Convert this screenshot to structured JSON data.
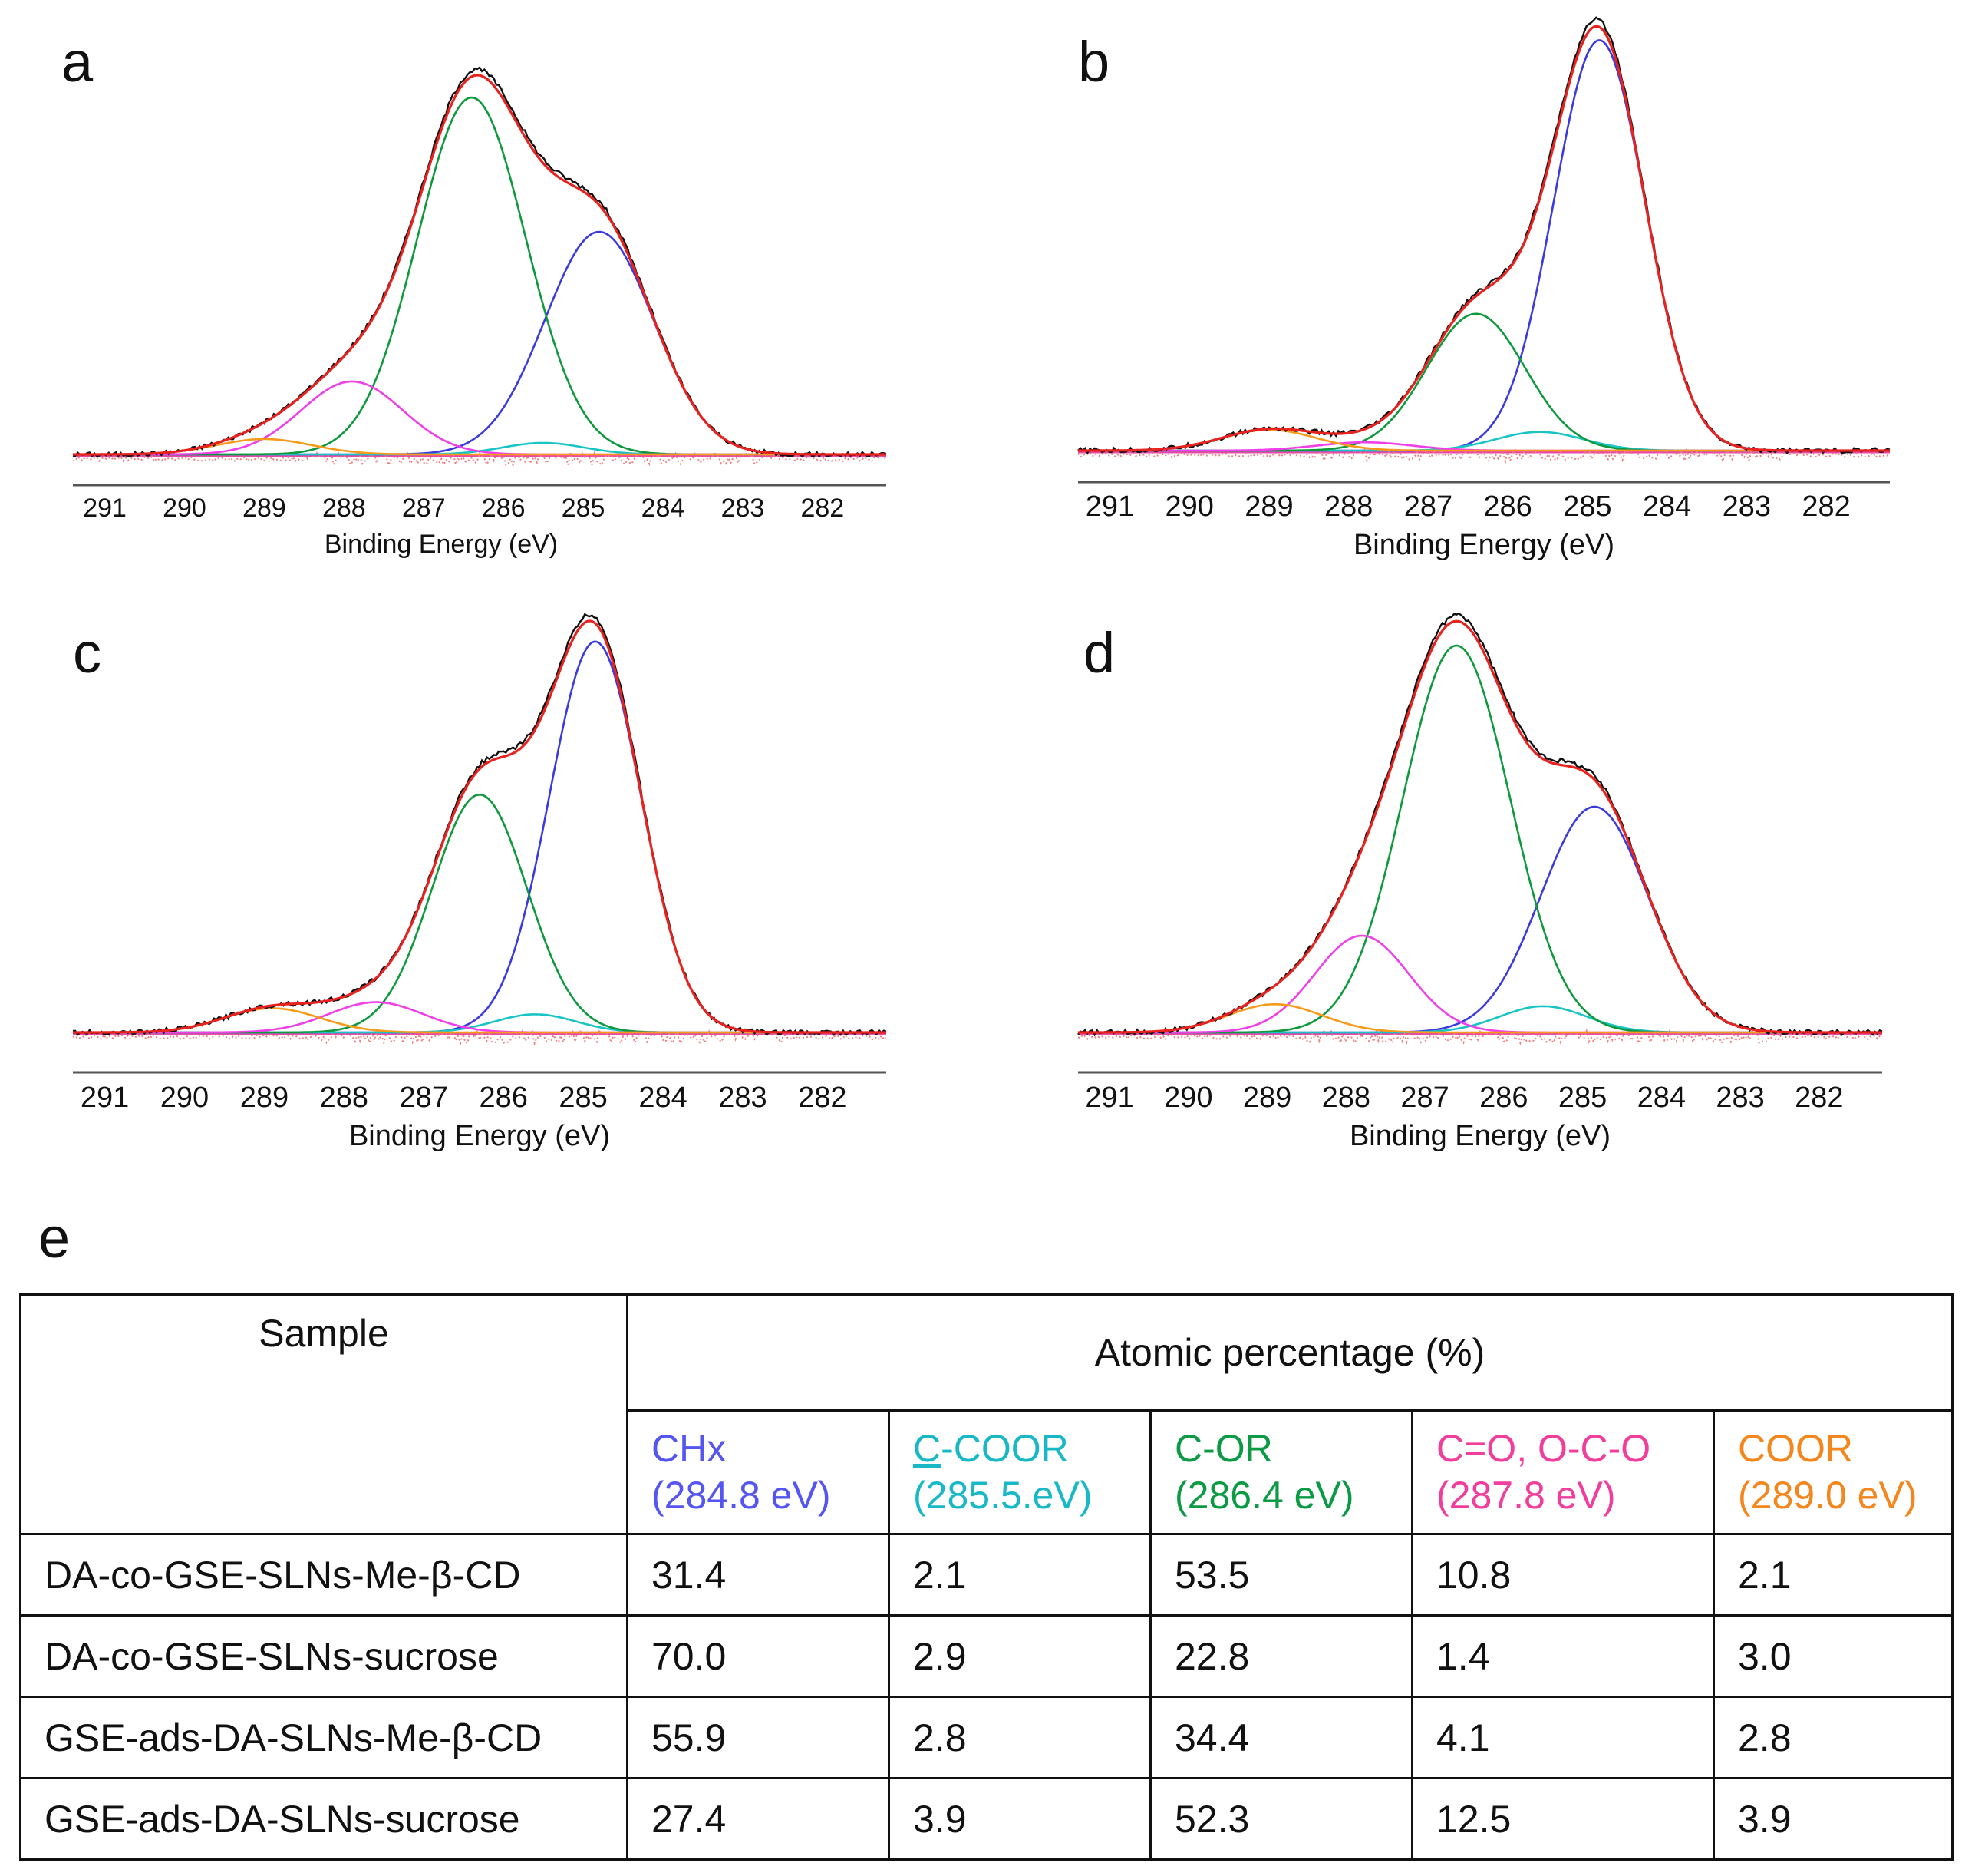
{
  "chart_data": [
    {
      "type": "line",
      "panel": "a",
      "xlabel": "Binding Energy (eV)",
      "ylabel": "",
      "xlim": [
        291.4,
        281.2
      ],
      "ylim": [
        0,
        1.0
      ],
      "xticks": [
        291,
        290,
        289,
        288,
        287,
        286,
        285,
        284,
        283,
        282
      ],
      "components": [
        {
          "name": "CHx",
          "color": "#3a3ae0",
          "center": 284.8,
          "height": 0.58,
          "fwhm": 1.6
        },
        {
          "name": "C-COOR",
          "color": "#19c4c4",
          "center": 285.5,
          "height": 0.03,
          "fwhm": 1.2
        },
        {
          "name": "C-OR",
          "color": "#0e9a3c",
          "center": 286.4,
          "height": 0.93,
          "fwhm": 1.6
        },
        {
          "name": "C=O, O-C-O",
          "color": "#f03ee8",
          "center": 287.9,
          "height": 0.19,
          "fwhm": 1.5
        },
        {
          "name": "COOR",
          "color": "#f79a1a",
          "center": 289.0,
          "height": 0.04,
          "fwhm": 1.4
        }
      ]
    },
    {
      "type": "line",
      "panel": "b",
      "xlabel": "Binding Energy (eV)",
      "ylabel": "",
      "xlim": [
        291.4,
        281.2
      ],
      "ylim": [
        0,
        1.0
      ],
      "xticks": [
        291,
        290,
        289,
        288,
        287,
        286,
        285,
        284,
        283,
        282
      ],
      "components": [
        {
          "name": "CHx",
          "color": "#3a3ae0",
          "center": 284.85,
          "height": 0.99,
          "fwhm": 1.35
        },
        {
          "name": "C-COOR",
          "color": "#19c4c4",
          "center": 285.6,
          "height": 0.045,
          "fwhm": 1.3
        },
        {
          "name": "C-OR",
          "color": "#0e9a3c",
          "center": 286.4,
          "height": 0.33,
          "fwhm": 1.45
        },
        {
          "name": "C=O, O-C-O",
          "color": "#f03ee8",
          "center": 287.8,
          "height": 0.02,
          "fwhm": 1.4
        },
        {
          "name": "COOR",
          "color": "#f79a1a",
          "center": 289.0,
          "height": 0.05,
          "fwhm": 1.4
        }
      ]
    },
    {
      "type": "line",
      "panel": "c",
      "xlabel": "Binding Energy (eV)",
      "ylabel": "",
      "xlim": [
        291.4,
        281.2
      ],
      "ylim": [
        0,
        1.0
      ],
      "xticks": [
        291,
        290,
        289,
        288,
        287,
        286,
        285,
        284,
        283,
        282
      ],
      "components": [
        {
          "name": "CHx",
          "color": "#3a3ae0",
          "center": 284.85,
          "height": 0.97,
          "fwhm": 1.35
        },
        {
          "name": "C-COOR",
          "color": "#19c4c4",
          "center": 285.6,
          "height": 0.045,
          "fwhm": 1.2
        },
        {
          "name": "C-OR",
          "color": "#0e9a3c",
          "center": 286.3,
          "height": 0.59,
          "fwhm": 1.4
        },
        {
          "name": "C=O, O-C-O",
          "color": "#f03ee8",
          "center": 287.6,
          "height": 0.075,
          "fwhm": 1.4
        },
        {
          "name": "COOR",
          "color": "#f79a1a",
          "center": 288.9,
          "height": 0.06,
          "fwhm": 1.4
        }
      ]
    },
    {
      "type": "line",
      "panel": "d",
      "xlabel": "Binding Energy (eV)",
      "ylabel": "",
      "xlim": [
        291.4,
        281.2
      ],
      "ylim": [
        0,
        1.0
      ],
      "xticks": [
        291,
        290,
        289,
        288,
        287,
        286,
        285,
        284,
        283,
        282
      ],
      "components": [
        {
          "name": "CHx",
          "color": "#3a3ae0",
          "center": 284.85,
          "height": 0.56,
          "fwhm": 1.6
        },
        {
          "name": "C-COOR",
          "color": "#19c4c4",
          "center": 285.5,
          "height": 0.065,
          "fwhm": 1.3
        },
        {
          "name": "C-OR",
          "color": "#0e9a3c",
          "center": 286.6,
          "height": 0.96,
          "fwhm": 1.6
        },
        {
          "name": "C=O, O-C-O",
          "color": "#f03ee8",
          "center": 287.8,
          "height": 0.24,
          "fwhm": 1.4
        },
        {
          "name": "COOR",
          "color": "#f79a1a",
          "center": 288.9,
          "height": 0.07,
          "fwhm": 1.4
        }
      ]
    },
    {
      "type": "table",
      "panel": "e",
      "header_sample": "Sample",
      "header_group": "Atomic percentage (%)",
      "columns": [
        {
          "label_main": "CHx",
          "label_energy": "(284.8 eV)",
          "color": "#5555f2"
        },
        {
          "label_main_underlined": "C",
          "label_main_rest": "-COOR",
          "label_energy": "(285.5.eV)",
          "color": "#19b8c6"
        },
        {
          "label_main": "C-OR",
          "label_energy": "(286.4 eV)",
          "color": "#0c9a45"
        },
        {
          "label_main": "C=O, O-C-O",
          "label_energy": "(287.8 eV)",
          "color": "#f13e9c"
        },
        {
          "label_main": "COOR",
          "label_energy": "(289.0 eV)",
          "color": "#f3861d"
        }
      ],
      "rows": [
        {
          "sample": "DA-co-GSE-SLNs-Me-β-CD",
          "values": [
            "31.4",
            "2.1",
            "53.5",
            "10.8",
            "2.1"
          ]
        },
        {
          "sample": "DA-co-GSE-SLNs-sucrose",
          "values": [
            "70.0",
            "2.9",
            "22.8",
            "1.4",
            "3.0"
          ]
        },
        {
          "sample": "GSE-ads-DA-SLNs-Me-β-CD",
          "values": [
            "55.9",
            "2.8",
            "34.4",
            "4.1",
            "2.8"
          ]
        },
        {
          "sample": "GSE-ads-DA-SLNs-sucrose",
          "values": [
            "27.4",
            "3.9",
            "52.3",
            "12.5",
            "3.9"
          ]
        }
      ]
    }
  ],
  "panels": {
    "a": {
      "letter": "a"
    },
    "b": {
      "letter": "b"
    },
    "c": {
      "letter": "c"
    },
    "d": {
      "letter": "d"
    },
    "e": {
      "letter": "e"
    }
  },
  "colors": {
    "envelope_fit": "#e8231f",
    "raw_data": "#111111",
    "residual": "#f08080",
    "baseline": "#e84aa8"
  }
}
